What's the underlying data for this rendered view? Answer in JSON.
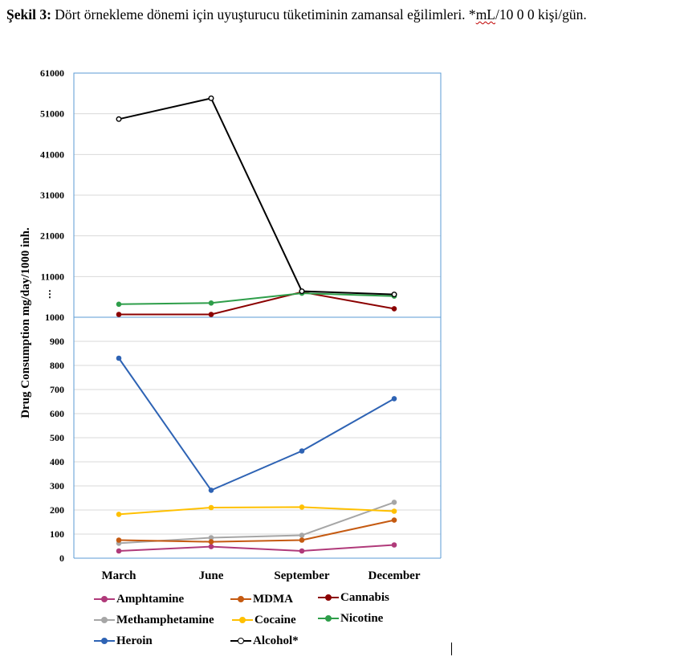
{
  "caption": {
    "label": "Şekil 3:",
    "text": " Dört örnekleme dönemi için uyuşturucu tüketiminin zamansal eğilimleri. *",
    "unit": "mL",
    "rest": "/10 0 0 kişi/gün."
  },
  "chart_data": {
    "type": "line",
    "ylabel": "Drug Consumption mg/day/1000 inh.",
    "categories": [
      "March",
      "June",
      "September",
      "December"
    ],
    "upper_axis": {
      "ylim": [
        1000,
        61000
      ],
      "ticks": [
        "61000",
        "51000",
        "41000",
        "31000",
        "21000",
        "11000"
      ],
      "break_marker": "⋮"
    },
    "lower_axis": {
      "ylim": [
        0,
        1000
      ],
      "ticks": [
        "1000",
        "900",
        "800",
        "700",
        "600",
        "500",
        "400",
        "300",
        "200",
        "100",
        "0"
      ]
    },
    "grid": true,
    "legend_position": "bottom",
    "series": [
      {
        "name": "Amphtamine",
        "color": "#b03a7a",
        "panel": "lower",
        "values": [
          30,
          48,
          30,
          55
        ]
      },
      {
        "name": "MDMA",
        "color": "#c55a11",
        "panel": "lower",
        "values": [
          75,
          68,
          75,
          158
        ]
      },
      {
        "name": "Cannabis",
        "color": "#8b0000",
        "panel": "upper",
        "values": [
          1700,
          1700,
          7200,
          3100
        ]
      },
      {
        "name": "Methamphetamine",
        "color": "#a6a6a6",
        "panel": "lower",
        "values": [
          62,
          85,
          95,
          232
        ]
      },
      {
        "name": "Cocaine",
        "color": "#ffc000",
        "panel": "lower",
        "values": [
          182,
          210,
          212,
          195
        ]
      },
      {
        "name": "Nicotine",
        "color": "#2e9e4a",
        "panel": "upper",
        "values": [
          4200,
          4500,
          6900,
          6200
        ]
      },
      {
        "name": "Heroin",
        "color": "#2e63b4",
        "panel": "lower",
        "values": [
          830,
          282,
          445,
          662
        ]
      },
      {
        "name": "Alcohol*",
        "color": "#000000",
        "panel": "upper",
        "values": [
          49700,
          54800,
          7400,
          6600
        ]
      }
    ]
  }
}
